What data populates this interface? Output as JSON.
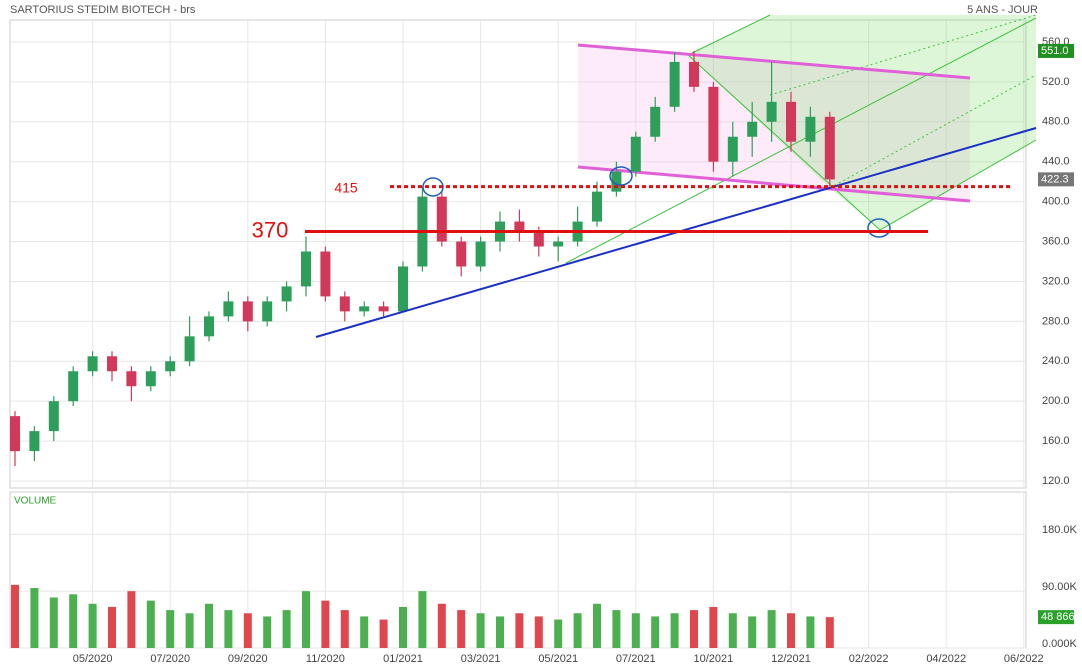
{
  "title": "SARTORIUS STEDIM BIOTECH - brs",
  "period": "5 ANS - JOUR",
  "chart_data": [
    {
      "type": "candlestick",
      "categories": [
        null,
        null,
        null,
        null,
        "05/2020",
        null,
        null,
        null,
        "07/2020",
        null,
        null,
        null,
        "09/2020",
        null,
        null,
        null,
        "11/2020",
        null,
        null,
        null,
        "01/2021",
        null,
        null,
        null,
        "03/2021",
        null,
        null,
        null,
        "05/2021",
        null,
        null,
        null,
        "07/2021",
        null,
        null,
        null,
        "10/2021",
        null,
        null,
        null,
        "12/2021",
        null,
        null,
        null,
        "02/2022",
        null,
        null,
        null,
        "04/2022",
        null,
        null,
        null,
        "06/2022"
      ],
      "open": [
        185,
        150,
        170,
        200,
        230,
        245,
        230,
        215,
        230,
        240,
        265,
        285,
        300,
        280,
        300,
        315,
        350,
        305,
        290,
        295,
        290,
        335,
        405,
        360,
        335,
        360,
        380,
        370,
        355,
        360,
        380,
        410,
        430,
        465,
        495,
        540,
        515,
        440,
        465,
        480,
        500,
        460,
        485,
        null,
        null,
        null,
        null,
        null,
        null,
        null,
        null,
        null,
        null
      ],
      "high": [
        190,
        175,
        205,
        235,
        250,
        250,
        235,
        235,
        245,
        285,
        290,
        310,
        305,
        305,
        320,
        365,
        355,
        310,
        300,
        300,
        340,
        415,
        410,
        365,
        365,
        390,
        392,
        375,
        365,
        395,
        420,
        440,
        470,
        505,
        550,
        551,
        520,
        480,
        500,
        540,
        510,
        495,
        490,
        null,
        null,
        null,
        null,
        null,
        null,
        null,
        null,
        null,
        null
      ],
      "low": [
        135,
        140,
        160,
        195,
        225,
        220,
        200,
        210,
        225,
        235,
        260,
        280,
        270,
        275,
        290,
        305,
        300,
        280,
        285,
        285,
        290,
        330,
        355,
        325,
        330,
        350,
        360,
        345,
        340,
        355,
        375,
        405,
        425,
        460,
        490,
        510,
        430,
        425,
        445,
        460,
        450,
        445,
        415,
        null,
        null,
        null,
        null,
        null,
        null,
        null,
        null,
        null,
        null
      ],
      "close": [
        150,
        170,
        200,
        230,
        245,
        230,
        215,
        230,
        240,
        265,
        285,
        300,
        280,
        300,
        315,
        350,
        305,
        290,
        295,
        290,
        335,
        405,
        360,
        335,
        360,
        380,
        370,
        355,
        360,
        380,
        410,
        430,
        465,
        495,
        540,
        515,
        440,
        465,
        480,
        500,
        460,
        485,
        422.3,
        null,
        null,
        null,
        null,
        null,
        null,
        null,
        null,
        null,
        null
      ],
      "up_color": "#2e9e5b",
      "down_color": "#d2385a",
      "ylim": [
        113,
        582
      ],
      "yticks": [
        {
          "value": 120,
          "label": "120.0"
        },
        {
          "value": 160,
          "label": "160.0"
        },
        {
          "value": 200,
          "label": "200.0"
        },
        {
          "value": 240,
          "label": "240.0"
        },
        {
          "value": 280,
          "label": "280.0"
        },
        {
          "value": 320,
          "label": "320.0"
        },
        {
          "value": 360,
          "label": "360.0"
        },
        {
          "value": 400,
          "label": "400.0"
        },
        {
          "value": 440,
          "label": "440.0"
        },
        {
          "value": 480,
          "label": "480.0"
        },
        {
          "value": 520,
          "label": "520.0"
        },
        {
          "value": 560,
          "label": "560.0"
        }
      ],
      "high_badge": {
        "value": 551,
        "label": "551.0"
      },
      "last_badge": 422.3,
      "levels": [
        {
          "value": 370,
          "style": "solid"
        },
        {
          "value": 415,
          "style": "dotted"
        }
      ],
      "grid": true
    },
    {
      "type": "bar",
      "title": "VOLUME",
      "values": [
        100000,
        95000,
        80000,
        85000,
        70000,
        65000,
        90000,
        75000,
        60000,
        55000,
        70000,
        60000,
        55000,
        50000,
        60000,
        90000,
        75000,
        60000,
        50000,
        45000,
        65000,
        90000,
        70000,
        60000,
        55000,
        50000,
        55000,
        50000,
        45000,
        55000,
        70000,
        60000,
        55000,
        50000,
        55000,
        60000,
        65000,
        55000,
        50000,
        60000,
        55000,
        50000,
        48866,
        null,
        null,
        null,
        null,
        null,
        null,
        null,
        null,
        null,
        null
      ],
      "up_color": "#4caf50",
      "down_color": "#e0474c",
      "ylim": [
        0,
        247000
      ],
      "yticks": [
        {
          "value": 0,
          "label": "0.000K"
        },
        {
          "value": 90000,
          "label": "90.00K"
        },
        {
          "value": 180000,
          "label": "180.0K"
        }
      ],
      "last_badge": {
        "value": 48866,
        "label": "48 866"
      },
      "grid": true
    }
  ]
}
